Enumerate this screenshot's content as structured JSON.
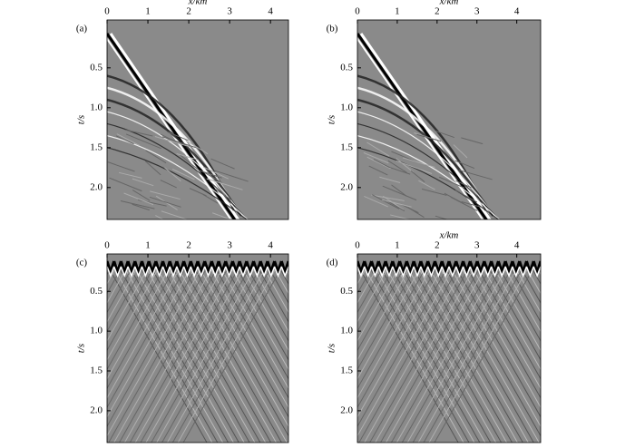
{
  "chart_data": [
    {
      "type": "image",
      "panel_label": "(a)",
      "x_label": "x/km",
      "y_label": "t/s",
      "xlim": [
        0,
        4.44
      ],
      "ylim": [
        -0.1,
        2.4
      ],
      "xticks": [
        0,
        1,
        2,
        3,
        4
      ],
      "yticks": [
        0.5,
        {
          "value": 1,
          "label": "1.0"
        },
        1.5,
        {
          "value": 2,
          "label": "2.0"
        }
      ]
    },
    {
      "type": "image",
      "panel_label": "(b)",
      "x_label": "x/km",
      "y_label": "t/s",
      "xlim": [
        0,
        4.6
      ],
      "ylim": [
        -0.1,
        2.4
      ],
      "xticks": [
        0,
        1,
        2,
        3,
        4
      ],
      "yticks": [
        0.5,
        {
          "value": 1,
          "label": "1.0"
        },
        1.5,
        {
          "value": 2,
          "label": "2.0"
        }
      ]
    },
    {
      "type": "image",
      "panel_label": "(c)",
      "y_label": "t/s",
      "xlim": [
        0,
        4.44
      ],
      "ylim": [
        0.03,
        2.4
      ],
      "xticks": [
        0,
        1,
        2,
        3,
        4
      ],
      "yticks": [
        0.5,
        {
          "value": 1,
          "label": "1.0"
        },
        1.5,
        {
          "value": 2,
          "label": "2.0"
        }
      ]
    },
    {
      "type": "image",
      "panel_label": "(d)",
      "x_label": "x/km",
      "y_label": "t/s",
      "xlim": [
        0,
        4.6
      ],
      "ylim": [
        0.03,
        2.4
      ],
      "xticks": [
        0,
        1,
        2,
        3,
        4
      ],
      "yticks": [
        0.5,
        {
          "value": 1,
          "label": "1.0"
        },
        1.5,
        {
          "value": 2,
          "label": "2.0"
        }
      ]
    }
  ]
}
